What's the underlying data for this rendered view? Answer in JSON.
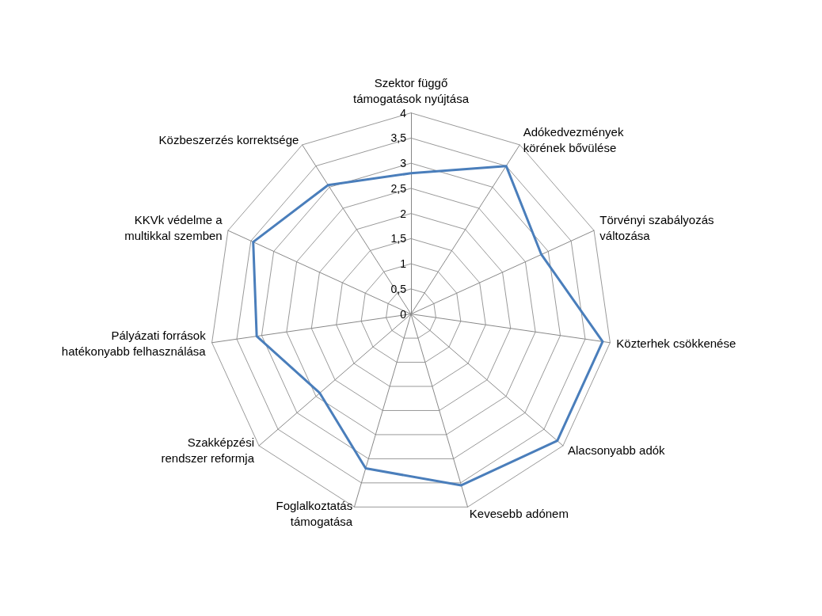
{
  "chart_data": {
    "type": "radar",
    "categories": [
      "Szektor függő támogatások nyújtása",
      "Adókedvezmények körének bővülése",
      "Törvényi szabályozás változása",
      "Közterhek csökkenése",
      "Alacsonyabb adók",
      "Kevesebb adónem",
      "Foglalkoztatás támogatása",
      "Szakképzési rendszer reformja",
      "Pályázati források hatékonyabb felhasználása",
      "KKVk védelme a multikkal szemben",
      "Közbeszerzés korrektsége"
    ],
    "series": [
      {
        "color": "#4a7ebb",
        "values": [
          2.8,
          3.5,
          2.85,
          3.85,
          3.85,
          3.55,
          3.2,
          2.4,
          3.1,
          3.45,
          3.05
        ]
      }
    ],
    "ylim": [
      0,
      4
    ],
    "yticks": [
      0,
      {
        "value": 0.5,
        "label": "0,5"
      },
      1,
      {
        "value": 1.5,
        "label": "1,5"
      },
      2,
      {
        "value": 2.5,
        "label": "2,5"
      },
      3,
      {
        "value": 3.5,
        "label": "3,5"
      },
      4
    ],
    "grid": true,
    "marker": "none",
    "line_style": "solid"
  }
}
